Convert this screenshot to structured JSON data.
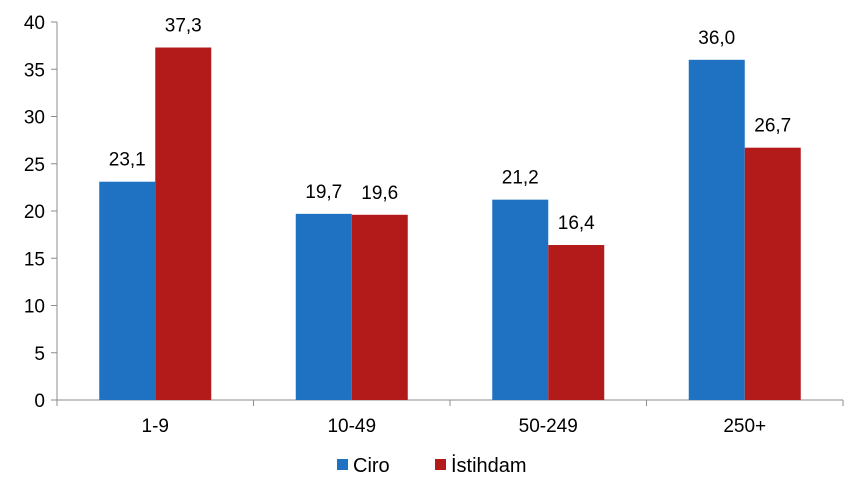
{
  "chart_data": {
    "type": "bar",
    "title": "",
    "xlabel": "",
    "ylabel": "",
    "categories": [
      "1-9",
      "10-49",
      "50-249",
      "250+"
    ],
    "series": [
      {
        "name": "Ciro",
        "values": [
          23.1,
          19.7,
          21.2,
          36.0
        ],
        "labels": [
          "23,1",
          "19,7",
          "21,2",
          "36,0"
        ],
        "color": "#1f72c2"
      },
      {
        "name": "İstihdam",
        "values": [
          37.3,
          19.6,
          16.4,
          26.7
        ],
        "labels": [
          "37,3",
          "19,6",
          "16,4",
          "26,7"
        ],
        "color": "#b31a1a"
      }
    ],
    "ylim": [
      0,
      40
    ],
    "yticks": [
      "0",
      "5",
      "10",
      "15",
      "20",
      "25",
      "30",
      "35",
      "40"
    ],
    "grid": false,
    "legend_position": "bottom"
  }
}
